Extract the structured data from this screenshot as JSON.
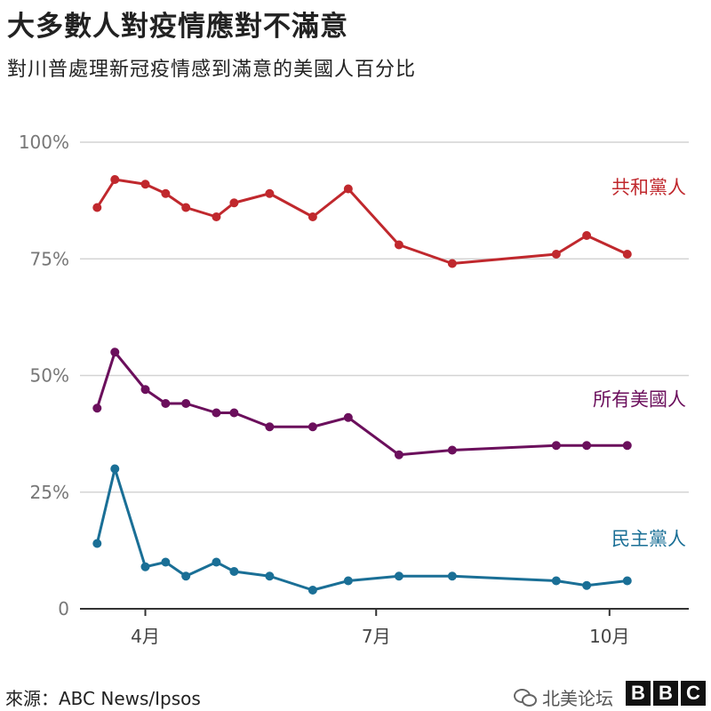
{
  "title": "大多數人對疫情應對不滿意",
  "subtitle": "對川普處理新冠疫情感到滿意的美國人百分比",
  "footer": {
    "source": "來源：ABC News/Ipsos",
    "watermark": "北美论坛",
    "logo": [
      "B",
      "B",
      "C"
    ]
  },
  "chart_data": {
    "type": "line",
    "title": "大多數人對疫情應對不滿意",
    "subtitle": "對川普處理新冠疫情感到滿意的美國人百分比",
    "xlabel": "",
    "ylabel": "",
    "ylim": [
      0,
      100
    ],
    "yticks": [
      {
        "value": 0,
        "label": "0"
      },
      {
        "value": 25,
        "label": "25%"
      },
      {
        "value": 50,
        "label": "50%"
      },
      {
        "value": 75,
        "label": "75%"
      },
      {
        "value": 100,
        "label": "100%"
      }
    ],
    "x_range": [
      "2020-03-15",
      "2020-10-27"
    ],
    "xticks": [
      {
        "date": "2020-04-01",
        "label": "4月"
      },
      {
        "date": "2020-07-01",
        "label": "7月"
      },
      {
        "date": "2020-10-01",
        "label": "10月"
      }
    ],
    "grid": true,
    "legend": "labels at right end of lines",
    "x": [
      "2020-03-13",
      "2020-03-20",
      "2020-04-01",
      "2020-04-09",
      "2020-04-17",
      "2020-04-29",
      "2020-05-06",
      "2020-05-20",
      "2020-06-06",
      "2020-06-20",
      "2020-07-10",
      "2020-07-31",
      "2020-09-10",
      "2020-09-22",
      "2020-10-08"
    ],
    "series": [
      {
        "name": "共和黨人",
        "color": "#c0282d",
        "values": [
          86,
          92,
          91,
          89,
          86,
          84,
          87,
          89,
          84,
          90,
          78,
          74,
          76,
          80,
          76
        ]
      },
      {
        "name": "所有美國人",
        "color": "#6b0f5c",
        "values": [
          43,
          55,
          47,
          44,
          44,
          42,
          42,
          39,
          39,
          41,
          33,
          34,
          35,
          35,
          35
        ]
      },
      {
        "name": "民主黨人",
        "color": "#1a6f96",
        "values": [
          14,
          30,
          9,
          10,
          7,
          10,
          8,
          7,
          4,
          6,
          7,
          7,
          6,
          5,
          6
        ]
      }
    ]
  }
}
